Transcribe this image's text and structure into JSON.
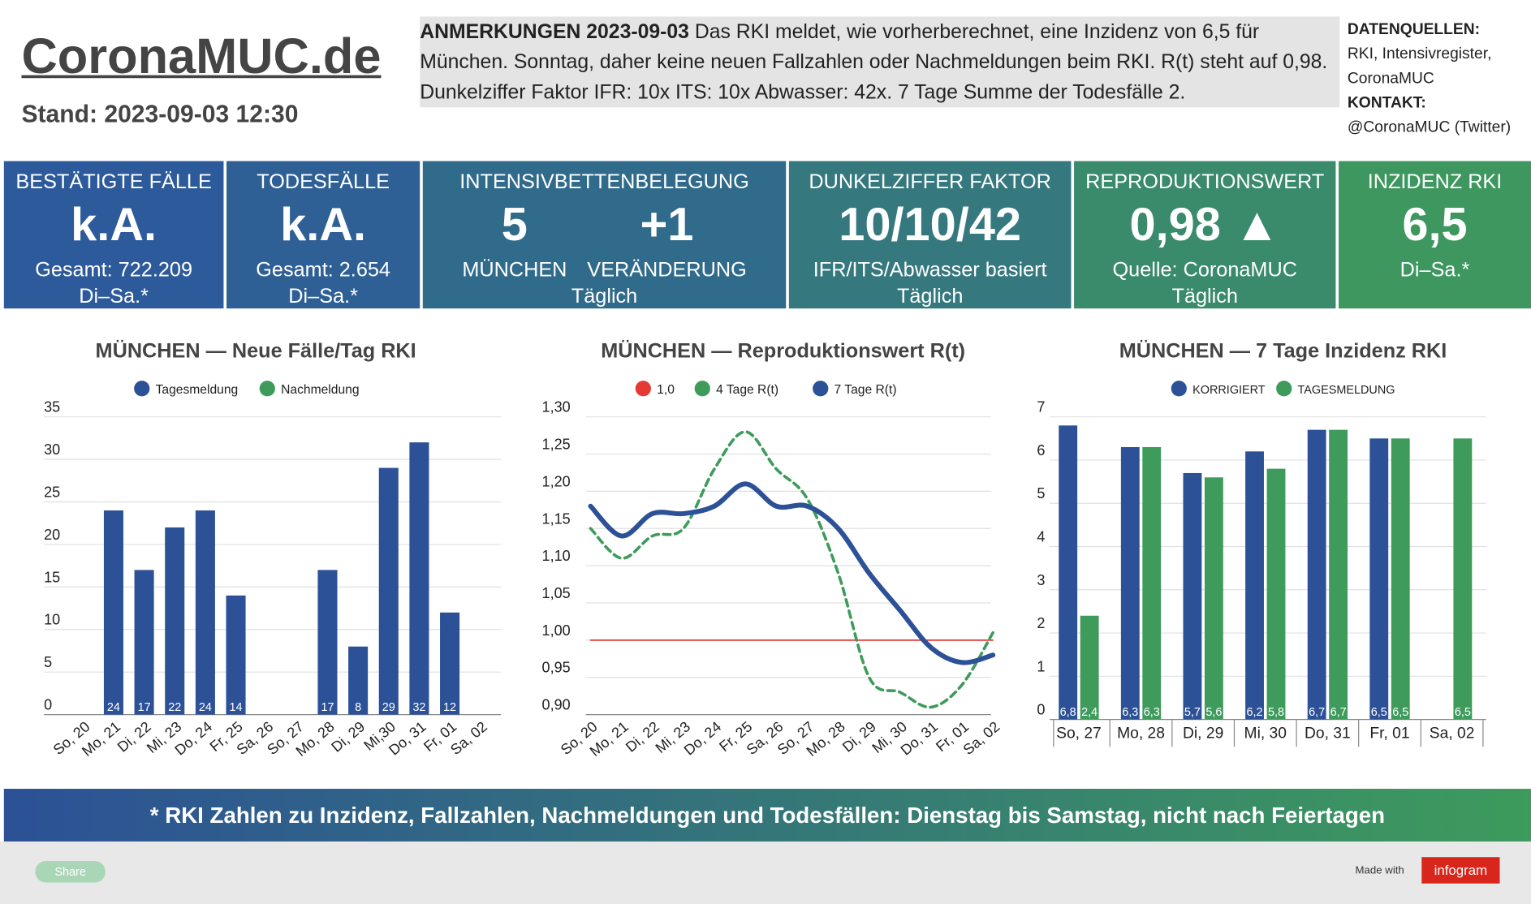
{
  "header": {
    "title": "CoronaMUC.de",
    "stand": "Stand: 2023-09-03 12:30"
  },
  "notes": {
    "label": "ANMERKUNGEN 2023-09-03",
    "text": "Das RKI meldet, wie vorherberechnet, eine Inzidenz von 6,5 für München. Sonntag, daher keine neuen Fallzahlen oder Nachmeldungen beim RKI. R(t) steht auf 0,98. Dunkelziffer Faktor IFR: 10x ITS: 10x Abwasser: 42x. 7 Tage Summe der Todesfälle 2."
  },
  "sources": {
    "label": "DATENQUELLEN:",
    "text": "RKI, Intensivregister, CoronaMUC",
    "contact_label": "KONTAKT:",
    "contact": "@CoronaMUC (Twitter)"
  },
  "kpis": [
    {
      "title": "BESTÄTIGTE FÄLLE",
      "value": "k.A.",
      "lines": [
        "Gesamt: 722.209",
        "Di–Sa.*"
      ]
    },
    {
      "title": "TODESFÄLLE",
      "value": "k.A.",
      "lines": [
        "Gesamt: 2.654",
        "Di–Sa.*"
      ]
    },
    {
      "title": "INTENSIVBETTENBELEGUNG",
      "values": [
        {
          "value": "5",
          "label": "MÜNCHEN"
        },
        {
          "value": "+1",
          "label": "VERÄNDERUNG"
        }
      ],
      "lines": [
        "Täglich"
      ]
    },
    {
      "title": "DUNKELZIFFER FAKTOR",
      "value": "10/10/42",
      "lines": [
        "IFR/ITS/Abwasser basiert",
        "Täglich"
      ]
    },
    {
      "title": "REPRODUKTIONSWERT",
      "value": "0,98 ▲",
      "lines": [
        "Quelle: CoronaMUC",
        "Täglich"
      ]
    },
    {
      "title": "INZIDENZ RKI",
      "value": "6,5",
      "lines": [
        "Di–Sa.*"
      ]
    }
  ],
  "footer": {
    "note": "* RKI Zahlen zu Inzidenz, Fallzahlen, Nachmeldungen und Todesfällen: Dienstag bis Samstag, nicht nach Feiertagen",
    "share": "Share",
    "made_with": "Made with",
    "brand": "infogram"
  },
  "chart_data": [
    {
      "type": "bar",
      "stacked": true,
      "title": "MÜNCHEN — Neue Fälle/Tag RKI",
      "categories": [
        "So, 20",
        "Mo, 21",
        "Di, 22",
        "Mi, 23",
        "Do, 24",
        "Fr, 25",
        "Sa, 26",
        "So, 27",
        "Mo, 28",
        "Di, 29",
        "Mi,30",
        "Do, 31",
        "Fr, 01",
        "Sa, 02"
      ],
      "series": [
        {
          "name": "Tagesmeldung",
          "color": "#2c5196",
          "values": [
            null,
            24,
            17,
            22,
            24,
            14,
            null,
            null,
            17,
            8,
            29,
            32,
            12,
            null
          ]
        },
        {
          "name": "Nachmeldung",
          "color": "#3e9b5b",
          "values": [
            null,
            null,
            null,
            null,
            null,
            null,
            null,
            null,
            null,
            null,
            null,
            null,
            null,
            null
          ]
        }
      ],
      "ylim": [
        0,
        35
      ],
      "yticks": [
        0,
        5,
        10,
        15,
        20,
        25,
        30,
        35
      ],
      "grid": true,
      "legend": "top"
    },
    {
      "type": "line",
      "title": "MÜNCHEN — Reproduktionswert R(t)",
      "categories": [
        "So, 20",
        "Mo, 21",
        "Di, 22",
        "Mi, 23",
        "Do, 24",
        "Fr, 25",
        "Sa, 26",
        "So, 27",
        "Mo, 28",
        "Di, 29",
        "Mi, 30",
        "Do, 31",
        "Fr, 01",
        "Sa, 02"
      ],
      "series": [
        {
          "name": "1,0",
          "color": "#e53935",
          "style": "solid",
          "values": [
            1,
            1,
            1,
            1,
            1,
            1,
            1,
            1,
            1,
            1,
            1,
            1,
            1,
            1
          ]
        },
        {
          "name": "4 Tage R(t)",
          "color": "#3e9b5b",
          "style": "dashed",
          "values": [
            1.15,
            1.11,
            1.14,
            1.15,
            1.23,
            1.28,
            1.23,
            1.19,
            1.09,
            0.95,
            0.93,
            0.91,
            0.94,
            1.01
          ]
        },
        {
          "name": "7 Tage R(t)",
          "color": "#2c5196",
          "style": "solid",
          "values": [
            1.18,
            1.14,
            1.17,
            1.17,
            1.18,
            1.21,
            1.18,
            1.18,
            1.15,
            1.09,
            1.04,
            0.99,
            0.97,
            0.98
          ]
        }
      ],
      "ylim": [
        0.9,
        1.3
      ],
      "yticks": [
        {
          "value": 0.9,
          "label": "0,90"
        },
        {
          "value": 0.95,
          "label": "0,95"
        },
        {
          "value": 1,
          "label": "1,00"
        },
        {
          "value": 1.05,
          "label": "1,05"
        },
        {
          "value": 1.1,
          "label": "1,10"
        },
        {
          "value": 1.15,
          "label": "1,15"
        },
        {
          "value": 1.2,
          "label": "1,20"
        },
        {
          "value": 1.25,
          "label": "1,25"
        },
        {
          "value": 1.3,
          "label": "1,30"
        }
      ],
      "grid": true,
      "legend": "top"
    },
    {
      "type": "bar",
      "stacked": false,
      "title": "MÜNCHEN — 7 Tage Inzidenz RKI",
      "categories": [
        "So, 27",
        "Mo, 28",
        "Di, 29",
        "Mi, 30",
        "Do, 31",
        "Fr, 01",
        "Sa, 02"
      ],
      "series": [
        {
          "name": "KORRIGIERT",
          "color": "#2c5196",
          "values": [
            6.8,
            6.3,
            5.7,
            6.2,
            6.7,
            6.5,
            null
          ],
          "value_labels": [
            "6,8",
            "6,3",
            "5,7",
            "6,2",
            "6,7",
            "6,5",
            null
          ]
        },
        {
          "name": "TAGESMELDUNG",
          "color": "#3e9b5b",
          "values": [
            2.4,
            6.3,
            5.6,
            5.8,
            6.7,
            6.5,
            6.5
          ],
          "value_labels": [
            "2,4",
            "6,3",
            "5,6",
            "5,8",
            "6,7",
            "6,5",
            "6,5"
          ]
        }
      ],
      "ylim": [
        0,
        7
      ],
      "yticks": [
        0,
        1,
        2,
        3,
        4,
        5,
        6,
        7
      ],
      "grid": true,
      "legend": "top"
    }
  ]
}
